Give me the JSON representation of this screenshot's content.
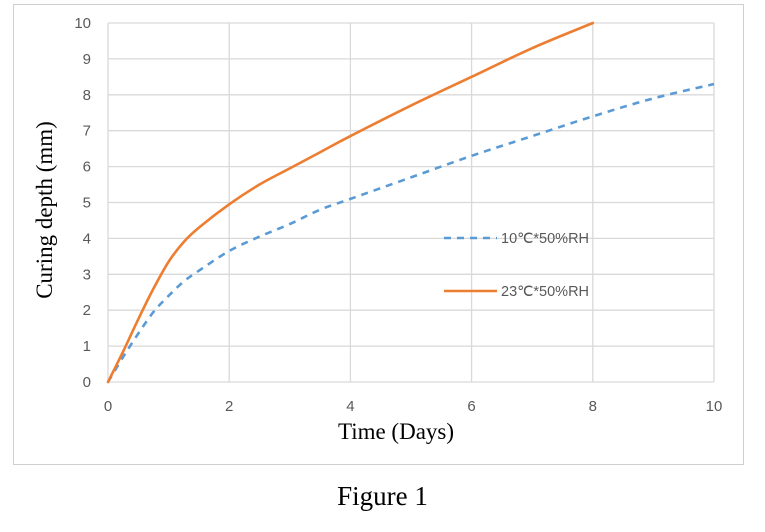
{
  "chart_data": {
    "type": "line",
    "xlabel": "Time (Days)",
    "ylabel": "Curing depth (mm)",
    "xlim": [
      0,
      10
    ],
    "ylim": [
      0,
      10
    ],
    "x_ticks": [
      0,
      2,
      4,
      6,
      8,
      10
    ],
    "y_ticks": [
      0,
      1,
      2,
      3,
      4,
      5,
      6,
      7,
      8,
      9,
      10
    ],
    "grid": true,
    "legend_position": "center-right",
    "series": [
      {
        "name": "10℃*50%RH",
        "color": "#5B9BD5",
        "style": "dashed",
        "x": [
          0,
          0.25,
          0.5,
          0.75,
          1,
          1.25,
          1.5,
          2,
          2.5,
          3,
          3.5,
          4,
          5,
          6,
          7,
          8,
          9,
          10
        ],
        "y": [
          0,
          0.7,
          1.35,
          1.95,
          2.4,
          2.8,
          3.1,
          3.65,
          4.05,
          4.4,
          4.8,
          5.1,
          5.7,
          6.3,
          6.85,
          7.4,
          7.9,
          8.3
        ]
      },
      {
        "name": "23℃*50%RH",
        "color": "#ED7D31",
        "style": "solid",
        "x": [
          0,
          0.25,
          0.5,
          0.75,
          1,
          1.25,
          1.5,
          2,
          2.5,
          3,
          3.5,
          4,
          5,
          6,
          7,
          8
        ],
        "y": [
          0,
          0.85,
          1.75,
          2.6,
          3.35,
          3.9,
          4.3,
          4.95,
          5.5,
          5.95,
          6.4,
          6.85,
          7.7,
          8.5,
          9.3,
          10
        ]
      }
    ]
  },
  "caption": "Figure 1"
}
